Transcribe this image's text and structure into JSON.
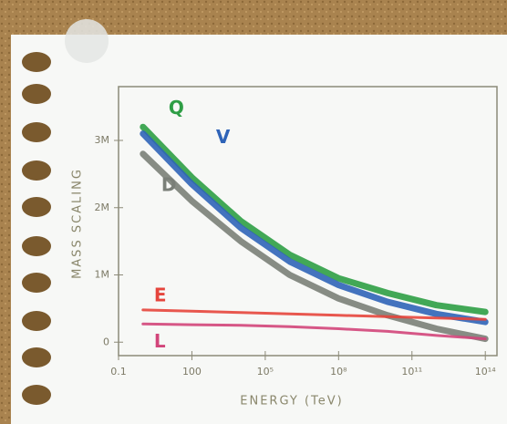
{
  "chart_data": {
    "type": "line",
    "x_label": "ENERGY (TeV)",
    "y_label": "MASS SCALING",
    "x": [
      1,
      100,
      10000,
      1000000,
      100000000,
      10000000000,
      1000000000000,
      100000000000000
    ],
    "x_scale": "log",
    "xlim": [
      0.1,
      300000000000000
    ],
    "xticks": [
      {
        "value": 0.1,
        "label": "0.1"
      },
      100,
      {
        "value": 100000,
        "label": "10⁵"
      },
      {
        "value": 100000000,
        "label": "10⁸"
      },
      {
        "value": 100000000000,
        "label": "10¹¹"
      },
      {
        "value": 100000000000000,
        "label": "10¹⁴"
      }
    ],
    "ylim": [
      -0.2,
      3.8
    ],
    "yticks": [
      0,
      {
        "value": 1,
        "label": "1M"
      },
      {
        "value": 2,
        "label": "2M"
      },
      {
        "value": 3,
        "label": "3M"
      }
    ],
    "series": [
      {
        "name": "Q",
        "color": "#2e9e45",
        "values": [
          3.2,
          2.45,
          1.8,
          1.3,
          0.95,
          0.73,
          0.55,
          0.45
        ]
      },
      {
        "name": "V",
        "color": "#2f64b8",
        "values": [
          3.1,
          2.35,
          1.7,
          1.2,
          0.85,
          0.6,
          0.42,
          0.3
        ]
      },
      {
        "name": "D",
        "color": "#7a7f78",
        "values": [
          2.8,
          2.1,
          1.5,
          1.0,
          0.65,
          0.4,
          0.2,
          0.05
        ]
      },
      {
        "name": "E",
        "color": "#e5453c",
        "values": [
          0.48,
          0.46,
          0.44,
          0.42,
          0.4,
          0.38,
          0.36,
          0.34
        ]
      },
      {
        "name": "L",
        "color": "#d2457a",
        "values": [
          0.27,
          0.26,
          0.25,
          0.23,
          0.2,
          0.16,
          0.1,
          0.05
        ]
      }
    ]
  }
}
